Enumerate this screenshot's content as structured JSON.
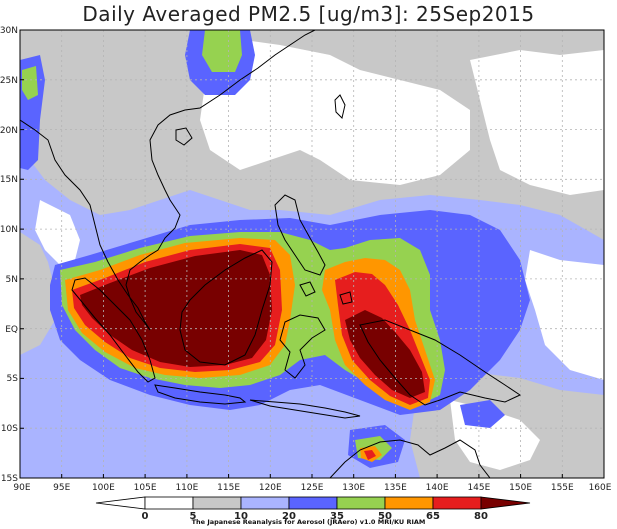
{
  "title": "Daily Averaged PM2.5 [ug/m3]: 25Sep2015",
  "credit": "The Japanese Reanalysis for Aerosol (JRAero) v1.0 MRI/KU RIAM",
  "lat_labels": [
    "30N",
    "25N",
    "20N",
    "15N",
    "10N",
    "5N",
    "EQ",
    "5S",
    "10S",
    "15S"
  ],
  "lon_labels": [
    "90E",
    "95E",
    "100E",
    "105E",
    "110E",
    "115E",
    "120E",
    "125E",
    "130E",
    "135E",
    "140E",
    "145E",
    "150E",
    "155E",
    "160E"
  ],
  "colorbar": {
    "levels": [
      "0",
      "5",
      "10",
      "20",
      "35",
      "50",
      "65",
      "80"
    ],
    "colors": [
      "#ffffff",
      "#c8c8c8",
      "#aab4ff",
      "#5a64ff",
      "#96d250",
      "#ff9600",
      "#e61e1e",
      "#780000"
    ]
  },
  "colors": {
    "white": "#ffffff",
    "gray": "#c8c8c8",
    "light_blue": "#aab4ff",
    "blue": "#5a64ff",
    "green": "#96d250",
    "orange": "#ff9600",
    "red": "#e61e1e",
    "dark_red": "#780000",
    "coast": "#000000"
  }
}
